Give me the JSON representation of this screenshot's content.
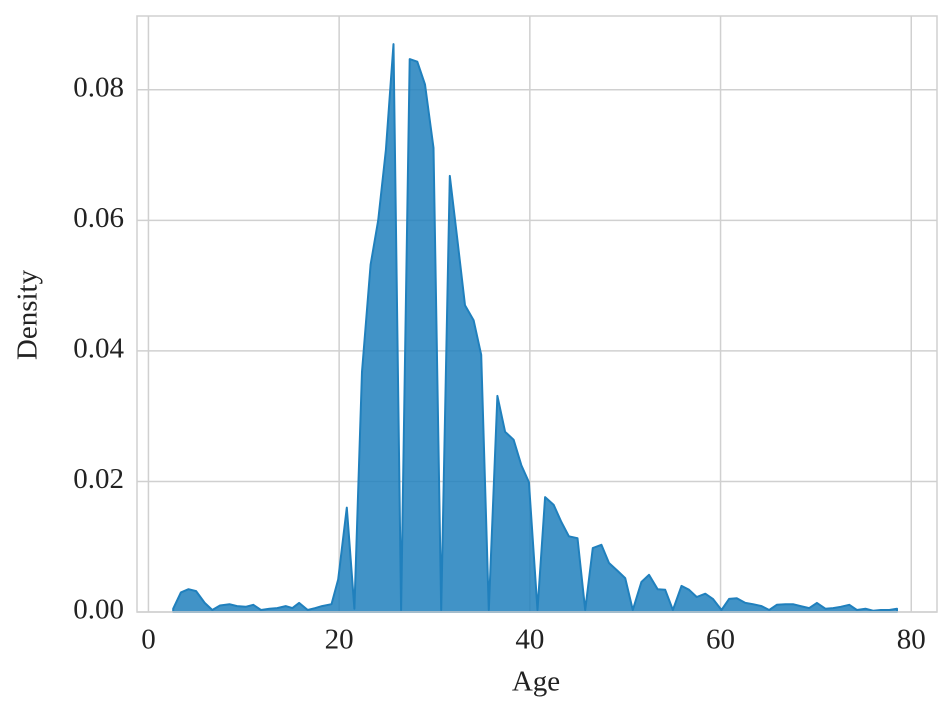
{
  "chart_data": {
    "type": "area",
    "xlabel": "Age",
    "ylabel": "Density",
    "x": [
      2.6,
      3.4,
      4.2,
      5.0,
      5.9,
      6.7,
      7.5,
      8.5,
      9.3,
      10.2,
      11.0,
      11.8,
      12.7,
      13.5,
      14.4,
      15.1,
      15.8,
      16.7,
      17.5,
      18.2,
      19.2,
      19.9,
      20.8,
      21.6,
      22.4,
      23.3,
      24.1,
      24.9,
      25.7,
      26.5,
      27.4,
      28.2,
      29.0,
      29.9,
      30.7,
      31.6,
      32.4,
      33.2,
      34.1,
      34.9,
      35.7,
      36.6,
      37.4,
      38.3,
      39.1,
      39.9,
      40.8,
      41.6,
      42.5,
      43.3,
      44.1,
      45.0,
      45.8,
      46.6,
      47.5,
      48.3,
      49.2,
      50.0,
      50.8,
      51.7,
      52.5,
      53.4,
      54.2,
      55.0,
      55.9,
      56.7,
      57.5,
      58.4,
      59.2,
      60.1,
      60.9,
      61.7,
      62.6,
      63.4,
      64.3,
      65.1,
      65.9,
      66.8,
      67.6,
      68.4,
      69.3,
      70.1,
      71.0,
      71.8,
      72.6,
      73.5,
      74.3,
      75.2,
      76.0,
      76.8,
      77.7,
      78.5
    ],
    "values": [
      0.0005,
      0.003,
      0.0035,
      0.0032,
      0.0014,
      0.0003,
      0.001,
      0.0012,
      0.0009,
      0.0008,
      0.0011,
      0.0003,
      0.0005,
      0.0006,
      0.0009,
      0.0006,
      0.0014,
      0.0003,
      0.0006,
      0.0009,
      0.0012,
      0.005,
      0.016,
      0.0005,
      0.0368,
      0.0532,
      0.06,
      0.0708,
      0.087,
      0.0003,
      0.0847,
      0.0843,
      0.0808,
      0.0711,
      0.0003,
      0.0668,
      0.057,
      0.047,
      0.0447,
      0.0394,
      0.0003,
      0.0331,
      0.0276,
      0.0264,
      0.0225,
      0.0199,
      0.0003,
      0.0176,
      0.0164,
      0.0138,
      0.0116,
      0.0113,
      0.0003,
      0.0098,
      0.0103,
      0.0075,
      0.0063,
      0.0052,
      0.0003,
      0.0046,
      0.0057,
      0.0035,
      0.0034,
      0.0003,
      0.004,
      0.0034,
      0.0023,
      0.0028,
      0.002,
      0.0003,
      0.002,
      0.0021,
      0.0014,
      0.0012,
      0.0009,
      0.0003,
      0.0011,
      0.0012,
      0.0012,
      0.0009,
      0.0006,
      0.0014,
      0.0005,
      0.0006,
      0.0008,
      0.0011,
      0.0003,
      0.0005,
      0.0002,
      0.0003,
      0.0003,
      0.0005
    ],
    "color": "#2080bd",
    "xlim": [
      -1.2,
      82.7
    ],
    "xticks": [
      0,
      20,
      40,
      60,
      80
    ],
    "ylim": [
      0,
      0.0913
    ],
    "yticks": [
      {
        "value": 0,
        "label": "0.00"
      },
      {
        "value": 0.02,
        "label": "0.02"
      },
      {
        "value": 0.04,
        "label": "0.04"
      },
      {
        "value": 0.06,
        "label": "0.06"
      },
      {
        "value": 0.08,
        "label": "0.08"
      }
    ],
    "grid": true
  }
}
